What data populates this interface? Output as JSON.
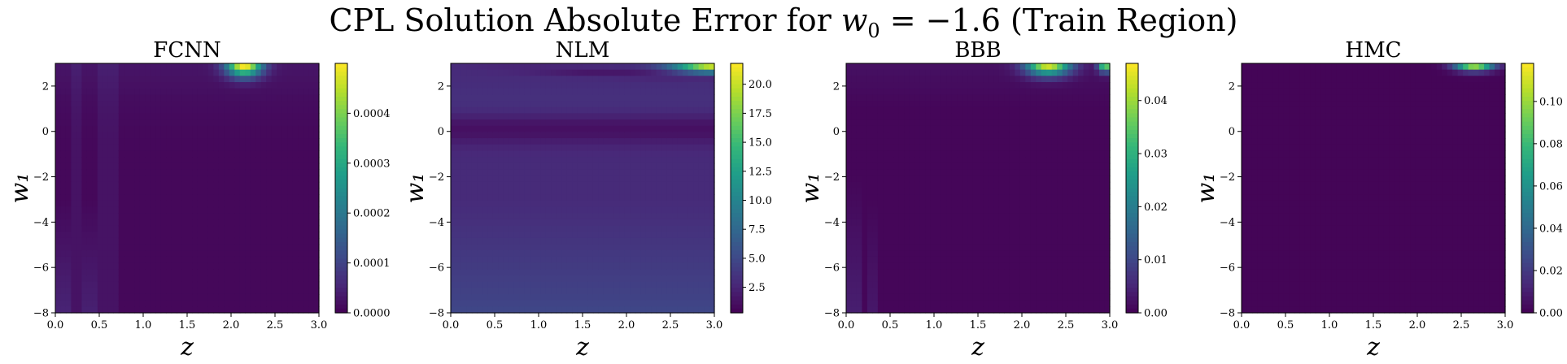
{
  "title": "CPL Solution Absolute Error for w₀ = −1.6 (Train Region)",
  "title_parts": {
    "prefix": "CPL Solution Absolute Error for ",
    "var": "w",
    "sub": "0",
    "eq": " = −1.6 (Train Region)"
  },
  "colormap": "viridis",
  "chart_data": [
    {
      "type": "heatmap",
      "title": "FCNN",
      "xlabel": "z",
      "ylabel": "w₁",
      "xlim": [
        0,
        3
      ],
      "ylim": [
        -8,
        3
      ],
      "xticks": [
        "0.0",
        "0.5",
        "1.0",
        "1.5",
        "2.0",
        "2.5",
        "3.0"
      ],
      "yticks": [
        "−8",
        "−6",
        "−4",
        "−2",
        "0",
        "2"
      ],
      "colorbar": {
        "min": 0,
        "max": 0.0005,
        "ticks": [
          "0.0000",
          "0.0001",
          "0.0002",
          "0.0003",
          "0.0004"
        ]
      },
      "peak": {
        "z": 2.15,
        "w1": 3.0,
        "value": 0.0005
      }
    },
    {
      "type": "heatmap",
      "title": "NLM",
      "xlabel": "z",
      "ylabel": "w₁",
      "xlim": [
        0,
        3
      ],
      "ylim": [
        -8,
        3
      ],
      "xticks": [
        "0.0",
        "0.5",
        "1.0",
        "1.5",
        "2.0",
        "2.5",
        "3.0"
      ],
      "yticks": [
        "−8",
        "−6",
        "−4",
        "−2",
        "0",
        "2"
      ],
      "colorbar": {
        "min": 0.3,
        "max": 21.8,
        "ticks": [
          "2.5",
          "5.0",
          "7.5",
          "10.0",
          "12.5",
          "15.0",
          "17.5",
          "20.0"
        ]
      },
      "peak": {
        "z": 3.0,
        "w1": 3.0,
        "value": 21.8
      }
    },
    {
      "type": "heatmap",
      "title": "BBB",
      "xlabel": "z",
      "ylabel": "w₁",
      "xlim": [
        0,
        3
      ],
      "ylim": [
        -8,
        3
      ],
      "xticks": [
        "0.0",
        "0.5",
        "1.0",
        "1.5",
        "2.0",
        "2.5",
        "3.0"
      ],
      "yticks": [
        "−8",
        "−6",
        "−4",
        "−2",
        "0",
        "2"
      ],
      "colorbar": {
        "min": 0,
        "max": 0.047,
        "ticks": [
          "0.00",
          "0.01",
          "0.02",
          "0.03",
          "0.04"
        ]
      },
      "peak": {
        "z": 2.3,
        "w1": 3.0,
        "value": 0.045
      }
    },
    {
      "type": "heatmap",
      "title": "HMC",
      "xlabel": "z",
      "ylabel": "w₁",
      "xlim": [
        0,
        3
      ],
      "ylim": [
        -8,
        3
      ],
      "xticks": [
        "0.0",
        "0.5",
        "1.0",
        "1.5",
        "2.0",
        "2.5",
        "3.0"
      ],
      "yticks": [
        "−8",
        "−6",
        "−4",
        "−2",
        "0",
        "2"
      ],
      "colorbar": {
        "min": 0,
        "max": 0.118,
        "ticks": [
          "0.00",
          "0.02",
          "0.04",
          "0.06",
          "0.08",
          "0.10"
        ]
      },
      "peak": {
        "z": 2.65,
        "w1": 3.0,
        "value": 0.118
      }
    }
  ]
}
